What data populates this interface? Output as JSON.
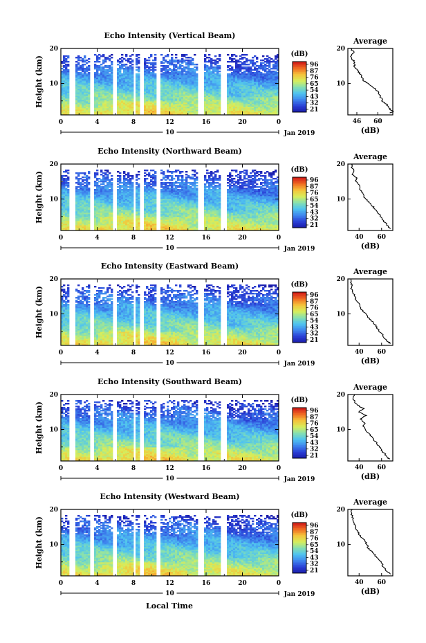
{
  "figure": {
    "xlabel": "Local Time",
    "colorbar_label": "(dB)",
    "colorbar_ticks": [
      "96",
      "87",
      "76",
      "65",
      "54",
      "43",
      "32",
      "21"
    ],
    "day_label": "10",
    "date_label": "Jan 2019",
    "average_title": "Average",
    "average_xlabel": "(dB)",
    "colormap": [
      "#1a1aa6",
      "#2a3fd6",
      "#3f86ee",
      "#4fc3f0",
      "#86e0b0",
      "#d8ee5a",
      "#f5c23a",
      "#f06a22",
      "#d01818"
    ],
    "background": "#ffffff"
  },
  "chart_data": [
    {
      "type": "heatmap",
      "title": "Echo Intensity (Vertical Beam)",
      "ylabel": "Height (km)",
      "xlabel": "Local Time",
      "x_ticks": [
        "0",
        "4",
        "8",
        "12",
        "16",
        "20",
        "0"
      ],
      "xlim": [
        0,
        24
      ],
      "y_ticks": [
        "10",
        "20"
      ],
      "ylim": [
        1,
        20
      ],
      "color_scale": [
        21,
        96
      ],
      "data_gaps_hours": [
        [
          1.0,
          1.6
        ],
        [
          3.2,
          3.6
        ],
        [
          5.8,
          6.2
        ],
        [
          7.9,
          8.2
        ],
        [
          8.7,
          9.2
        ],
        [
          10.6,
          11.0
        ],
        [
          15.2,
          15.7
        ],
        [
          17.7,
          18.2
        ]
      ],
      "average_profile": {
        "title": "Average",
        "xlabel": "(dB)",
        "x_ticks": [
          "46",
          "60"
        ],
        "xlim": [
          40,
          70
        ],
        "y_ticks": [
          "10",
          "20"
        ],
        "height_km": [
          1.5,
          2,
          3,
          4,
          5,
          6,
          7,
          8,
          9,
          10,
          11,
          12,
          13,
          14,
          15,
          16,
          17,
          18,
          19,
          20
        ],
        "db": [
          68,
          70,
          67,
          66,
          63,
          62,
          61,
          59,
          57,
          53,
          50,
          49,
          48,
          46,
          44,
          45,
          43,
          42,
          44,
          42
        ]
      }
    },
    {
      "type": "heatmap",
      "title": "Echo Intensity (Northward Beam)",
      "ylabel": "Height (km)",
      "xlabel": "Local Time",
      "x_ticks": [
        "0",
        "4",
        "8",
        "12",
        "16",
        "20",
        "0"
      ],
      "xlim": [
        0,
        24
      ],
      "y_ticks": [
        "10",
        "20"
      ],
      "ylim": [
        1,
        20
      ],
      "color_scale": [
        21,
        96
      ],
      "data_gaps_hours": [
        [
          1.0,
          1.6
        ],
        [
          3.2,
          3.6
        ],
        [
          5.8,
          6.2
        ],
        [
          7.9,
          8.2
        ],
        [
          8.7,
          9.2
        ],
        [
          10.6,
          11.0
        ],
        [
          15.2,
          15.7
        ],
        [
          17.7,
          18.2
        ]
      ],
      "average_profile": {
        "title": "Average",
        "xlabel": "(dB)",
        "x_ticks": [
          "40",
          "60"
        ],
        "xlim": [
          30,
          70
        ],
        "y_ticks": [
          "10",
          "20"
        ],
        "height_km": [
          1.5,
          2,
          3,
          4,
          5,
          6,
          7,
          8,
          9,
          10,
          11,
          12,
          13,
          14,
          15,
          16,
          17,
          18,
          19,
          20
        ],
        "db": [
          68,
          66,
          64,
          61,
          59,
          57,
          54,
          52,
          49,
          46,
          44,
          42,
          41,
          40,
          37,
          38,
          34,
          36,
          33,
          34
        ]
      }
    },
    {
      "type": "heatmap",
      "title": "Echo Intensity (Eastward Beam)",
      "ylabel": "Height (km)",
      "xlabel": "Local Time",
      "x_ticks": [
        "0",
        "4",
        "8",
        "12",
        "16",
        "20",
        "0"
      ],
      "xlim": [
        0,
        24
      ],
      "y_ticks": [
        "10",
        "20"
      ],
      "ylim": [
        1,
        20
      ],
      "color_scale": [
        21,
        96
      ],
      "data_gaps_hours": [
        [
          1.0,
          1.6
        ],
        [
          3.2,
          3.6
        ],
        [
          5.8,
          6.2
        ],
        [
          7.9,
          8.2
        ],
        [
          8.7,
          9.2
        ],
        [
          10.6,
          11.0
        ],
        [
          15.2,
          15.7
        ],
        [
          17.7,
          18.2
        ]
      ],
      "average_profile": {
        "title": "Average",
        "xlabel": "(dB)",
        "x_ticks": [
          "40",
          "60"
        ],
        "xlim": [
          30,
          70
        ],
        "y_ticks": [
          "10",
          "20"
        ],
        "height_km": [
          1.5,
          2,
          3,
          4,
          5,
          6,
          7,
          8,
          9,
          10,
          11,
          12,
          13,
          14,
          15,
          16,
          17,
          18,
          19,
          20
        ],
        "db": [
          68,
          66,
          63,
          61,
          58,
          56,
          54,
          51,
          48,
          46,
          43,
          41,
          40,
          37,
          36,
          35,
          33,
          34,
          32,
          33
        ]
      }
    },
    {
      "type": "heatmap",
      "title": "Echo Intensity (Southward Beam)",
      "ylabel": "Height (km)",
      "xlabel": "Local Time",
      "x_ticks": [
        "0",
        "4",
        "8",
        "12",
        "16",
        "20",
        "0"
      ],
      "xlim": [
        0,
        24
      ],
      "y_ticks": [
        "10",
        "20"
      ],
      "ylim": [
        1,
        20
      ],
      "color_scale": [
        21,
        96
      ],
      "data_gaps_hours": [
        [
          1.0,
          1.6
        ],
        [
          3.2,
          3.6
        ],
        [
          5.8,
          6.2
        ],
        [
          7.9,
          8.2
        ],
        [
          8.7,
          9.2
        ],
        [
          10.6,
          11.0
        ],
        [
          15.2,
          15.7
        ],
        [
          17.7,
          18.2
        ]
      ],
      "average_profile": {
        "title": "Average",
        "xlabel": "(dB)",
        "x_ticks": [
          "40",
          "60"
        ],
        "xlim": [
          30,
          70
        ],
        "y_ticks": [
          "10",
          "20"
        ],
        "height_km": [
          1.5,
          2,
          3,
          4,
          5,
          6,
          7,
          8,
          9,
          10,
          11,
          12,
          13,
          14,
          15,
          16,
          17,
          18,
          19,
          20
        ],
        "db": [
          67,
          65,
          63,
          60,
          58,
          56,
          53,
          51,
          48,
          46,
          44,
          45,
          41,
          46,
          40,
          44,
          38,
          36,
          34,
          36
        ]
      }
    },
    {
      "type": "heatmap",
      "title": "Echo Intensity (Westward Beam)",
      "ylabel": "Height (km)",
      "xlabel": "Local Time",
      "x_ticks": [
        "0",
        "4",
        "8",
        "12",
        "16",
        "20",
        "0"
      ],
      "xlim": [
        0,
        24
      ],
      "y_ticks": [
        "10",
        "20"
      ],
      "ylim": [
        1,
        20
      ],
      "color_scale": [
        21,
        96
      ],
      "data_gaps_hours": [
        [
          1.0,
          1.6
        ],
        [
          3.2,
          3.6
        ],
        [
          5.8,
          6.2
        ],
        [
          7.9,
          8.2
        ],
        [
          8.7,
          9.2
        ],
        [
          10.6,
          11.0
        ],
        [
          15.2,
          15.7
        ],
        [
          17.7,
          18.2
        ]
      ],
      "average_profile": {
        "title": "Average",
        "xlabel": "(dB)",
        "x_ticks": [
          "40",
          "60"
        ],
        "xlim": [
          30,
          70
        ],
        "y_ticks": [
          "10",
          "20"
        ],
        "height_km": [
          1.5,
          2,
          3,
          4,
          5,
          6,
          7,
          8,
          9,
          10,
          11,
          12,
          13,
          14,
          15,
          16,
          17,
          18,
          19,
          20
        ],
        "db": [
          68,
          66,
          63,
          61,
          59,
          56,
          54,
          51,
          48,
          47,
          45,
          42,
          40,
          38,
          37,
          36,
          35,
          34,
          33,
          34
        ]
      }
    }
  ]
}
